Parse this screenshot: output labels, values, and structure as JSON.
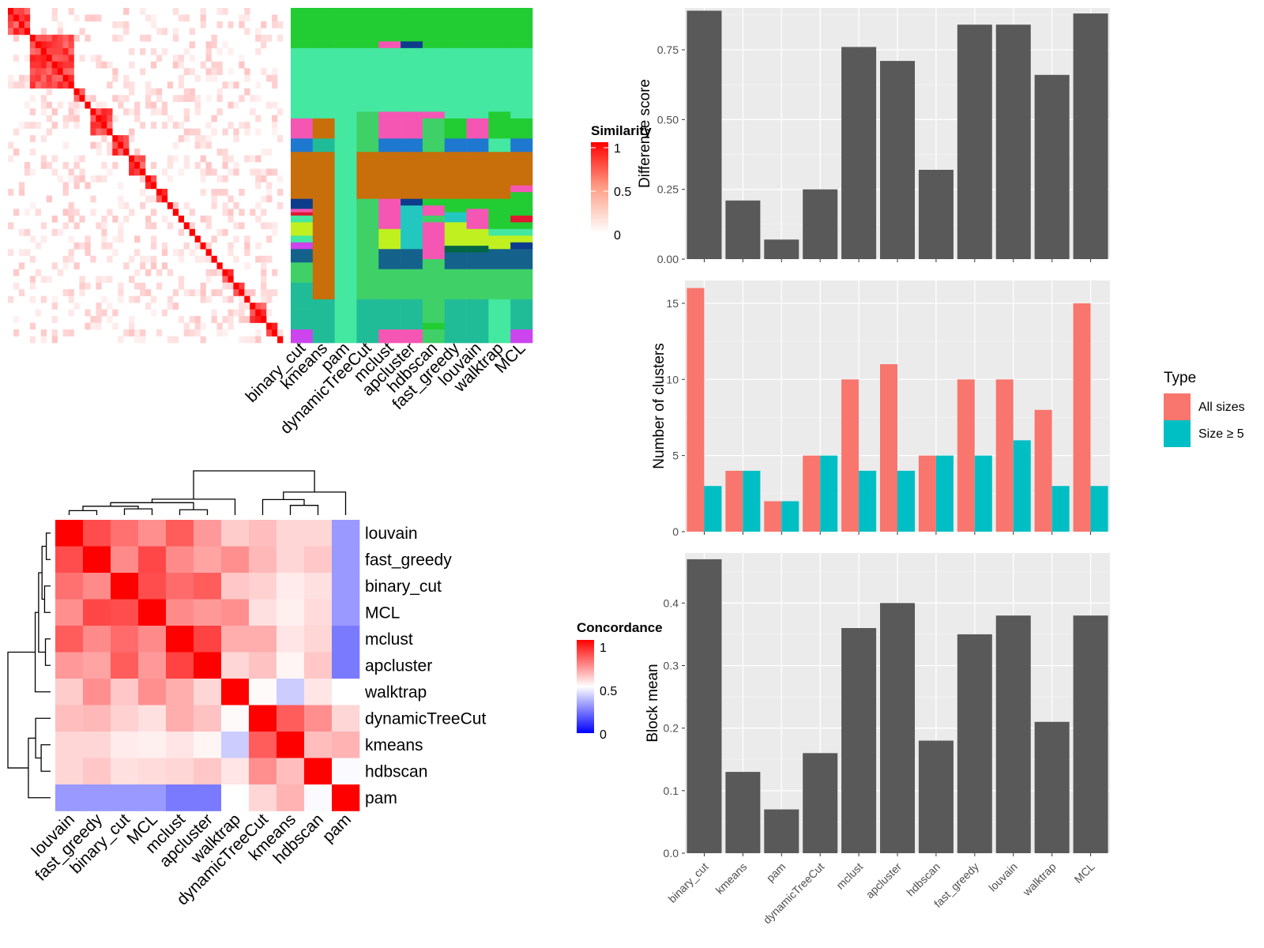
{
  "figure": {
    "methods": [
      "binary_cut",
      "kmeans",
      "pam",
      "dynamicTreeCut",
      "mclust",
      "apcluster",
      "hdbscan",
      "fast_greedy",
      "louvain",
      "walktrap",
      "MCL"
    ]
  },
  "chart_data": [
    {
      "id": "similarity_heatmap",
      "type": "heatmap",
      "legend_title": "Similarity",
      "legend_ticks": [
        "1",
        "0.5",
        "0"
      ],
      "colors": {
        "low": "#ffffff",
        "high": "#ff0000"
      },
      "block_sizes": [
        4,
        8,
        2,
        1,
        4,
        3,
        3,
        2,
        2,
        1,
        1,
        1,
        1,
        1,
        1,
        1,
        1,
        1,
        1,
        2,
        2,
        1,
        3,
        2,
        1
      ],
      "note_blocks": "diagonal similarity blocks (number of terms per block)"
    },
    {
      "id": "cluster_annotation",
      "type": "heatmap",
      "columns": [
        "binary_cut",
        "kmeans",
        "pam",
        "dynamicTreeCut",
        "mclust",
        "apcluster",
        "hdbscan",
        "fast_greedy",
        "louvain",
        "walktrap",
        "MCL"
      ],
      "palette": [
        "#22cc33",
        "#44e8a0",
        "#f556b4",
        "#c86e0a",
        "#1e78d0",
        "#0e3c8c",
        "#1aa8b8",
        "#14628c",
        "#c0f020",
        "#3fd068",
        "#cc44ee",
        "#22c8c0",
        "#20bc98",
        "#e01830",
        "#006644"
      ]
    },
    {
      "id": "concordance_heatmap",
      "type": "heatmap",
      "legend_title": "Concordance",
      "legend_ticks": [
        "1",
        "0.5",
        "0"
      ],
      "colors": {
        "low": "#0000ff",
        "mid": "#ffffff",
        "high": "#ff0000"
      },
      "labels": [
        "louvain",
        "fast_greedy",
        "binary_cut",
        "MCL",
        "mclust",
        "apcluster",
        "walktrap",
        "dynamicTreeCut",
        "kmeans",
        "hdbscan",
        "pam"
      ],
      "values": [
        [
          1.0,
          0.85,
          0.78,
          0.72,
          0.82,
          0.7,
          0.6,
          0.63,
          0.58,
          0.58,
          0.3
        ],
        [
          0.85,
          1.0,
          0.73,
          0.86,
          0.73,
          0.68,
          0.72,
          0.64,
          0.58,
          0.61,
          0.3
        ],
        [
          0.78,
          0.73,
          1.0,
          0.85,
          0.79,
          0.82,
          0.61,
          0.59,
          0.54,
          0.56,
          0.3
        ],
        [
          0.72,
          0.86,
          0.85,
          1.0,
          0.73,
          0.7,
          0.72,
          0.56,
          0.53,
          0.57,
          0.3
        ],
        [
          0.82,
          0.73,
          0.79,
          0.73,
          1.0,
          0.87,
          0.66,
          0.66,
          0.55,
          0.58,
          0.24
        ],
        [
          0.7,
          0.68,
          0.82,
          0.7,
          0.87,
          1.0,
          0.58,
          0.62,
          0.52,
          0.61,
          0.24
        ],
        [
          0.6,
          0.72,
          0.61,
          0.72,
          0.66,
          0.58,
          1.0,
          0.51,
          0.4,
          0.55,
          0.5
        ],
        [
          0.63,
          0.64,
          0.59,
          0.56,
          0.66,
          0.62,
          0.51,
          1.0,
          0.82,
          0.72,
          0.58
        ],
        [
          0.58,
          0.58,
          0.54,
          0.53,
          0.55,
          0.52,
          0.4,
          0.82,
          1.0,
          0.63,
          0.65
        ],
        [
          0.58,
          0.61,
          0.56,
          0.57,
          0.58,
          0.61,
          0.55,
          0.72,
          0.63,
          1.0,
          0.49
        ],
        [
          0.3,
          0.3,
          0.3,
          0.3,
          0.24,
          0.24,
          0.5,
          0.58,
          0.65,
          0.49,
          1.0
        ]
      ]
    },
    {
      "id": "difference_score",
      "type": "bar",
      "ylabel": "Difference score",
      "ylim": [
        0,
        0.9
      ],
      "yticks": [
        0.0,
        0.25,
        0.5,
        0.75
      ],
      "categories": [
        "binary_cut",
        "kmeans",
        "pam",
        "dynamicTreeCut",
        "mclust",
        "apcluster",
        "hdbscan",
        "fast_greedy",
        "louvain",
        "walktrap",
        "MCL"
      ],
      "values": [
        0.89,
        0.21,
        0.07,
        0.25,
        0.76,
        0.71,
        0.32,
        0.84,
        0.84,
        0.66,
        0.88
      ],
      "color": "#595959"
    },
    {
      "id": "number_of_clusters",
      "type": "bar",
      "ylabel": "Number of clusters",
      "ylim": [
        0,
        16.5
      ],
      "yticks": [
        0,
        5,
        10,
        15
      ],
      "categories": [
        "binary_cut",
        "kmeans",
        "pam",
        "dynamicTreeCut",
        "mclust",
        "apcluster",
        "hdbscan",
        "fast_greedy",
        "louvain",
        "walktrap",
        "MCL"
      ],
      "legend_title": "Type",
      "series": [
        {
          "name": "All sizes",
          "color": "#f8766d",
          "values": [
            16,
            4,
            2,
            5,
            10,
            11,
            5,
            10,
            10,
            8,
            15
          ]
        },
        {
          "name": "Size ≥ 5",
          "color": "#00bfc4",
          "values": [
            3,
            4,
            2,
            5,
            4,
            4,
            5,
            5,
            6,
            3,
            3
          ]
        }
      ]
    },
    {
      "id": "block_mean",
      "type": "bar",
      "ylabel": "Block mean",
      "ylim": [
        0,
        0.48
      ],
      "yticks": [
        0.0,
        0.1,
        0.2,
        0.3,
        0.4
      ],
      "categories": [
        "binary_cut",
        "kmeans",
        "pam",
        "dynamicTreeCut",
        "mclust",
        "apcluster",
        "hdbscan",
        "fast_greedy",
        "louvain",
        "walktrap",
        "MCL"
      ],
      "values": [
        0.47,
        0.13,
        0.07,
        0.16,
        0.36,
        0.4,
        0.18,
        0.35,
        0.38,
        0.21,
        0.38
      ],
      "color": "#595959"
    }
  ]
}
